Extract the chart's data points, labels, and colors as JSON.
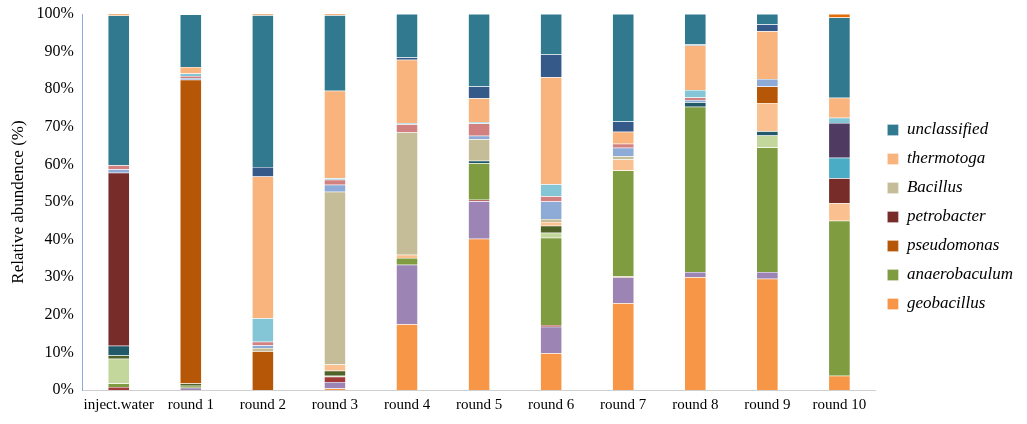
{
  "chart_data": {
    "type": "bar",
    "stacked": true,
    "ylabel": "Relative abundence (%)",
    "categories": [
      "inject.water",
      "round 1",
      "round 2",
      "round 3",
      "round 4",
      "round 5",
      "round 6",
      "round 7",
      "round 8",
      "round 9",
      "round 10"
    ],
    "ylim": [
      0,
      100
    ],
    "yticks": [
      {
        "value": 0,
        "label": "0%"
      },
      {
        "value": 10,
        "label": "10%"
      },
      {
        "value": 20,
        "label": "20%"
      },
      {
        "value": 30,
        "label": "30%"
      },
      {
        "value": 40,
        "label": "40%"
      },
      {
        "value": 50,
        "label": "50%"
      },
      {
        "value": 60,
        "label": "60%"
      },
      {
        "value": 70,
        "label": "70%"
      },
      {
        "value": 80,
        "label": "80%"
      },
      {
        "value": 90,
        "label": "90%"
      },
      {
        "value": 100,
        "label": "100%"
      }
    ],
    "grid": false,
    "legend": "right",
    "series": [
      {
        "name": "geobacillus",
        "color": "#f79646",
        "values": [
          null,
          null,
          null,
          0.4,
          17.5,
          40.2,
          9.8,
          23.1,
          30.0,
          29.6,
          3.8
        ]
      },
      {
        "color": "#9c85b5",
        "values": [
          null,
          0.6,
          null,
          1.7,
          15.8,
          10.0,
          7.0,
          6.8,
          1.4,
          1.8,
          null
        ]
      },
      {
        "color": "#a33b3b",
        "values": [
          0.8,
          null,
          null,
          1.4,
          null,
          0.4,
          0.5,
          0.3,
          null,
          null,
          null
        ]
      },
      {
        "name": "anaerobaculum",
        "color": "#7f9c41",
        "values": [
          0.9,
          0.5,
          null,
          null,
          1.8,
          9.7,
          23.2,
          28.2,
          43.9,
          33.1,
          41.2
        ]
      },
      {
        "color": "#c3d69b",
        "values": [
          6.6,
          null,
          null,
          0.3,
          null,
          null,
          1.3,
          null,
          null,
          3.2,
          null
        ]
      },
      {
        "color": "#4f6228",
        "values": [
          0.9,
          0.6,
          null,
          1.3,
          null,
          null,
          1.9,
          null,
          null,
          null,
          null
        ]
      },
      {
        "color": "#215968",
        "values": [
          2.6,
          null,
          null,
          null,
          null,
          0.7,
          null,
          null,
          1.2,
          1.1,
          null
        ]
      },
      {
        "color": "#fac090",
        "values": [
          null,
          null,
          null,
          1.7,
          0.9,
          null,
          1.0,
          2.9,
          null,
          7.5,
          4.7
        ]
      },
      {
        "name": "pseudomonas",
        "color": "#b65708",
        "values": [
          null,
          80.8,
          10.3,
          null,
          null,
          null,
          null,
          null,
          null,
          4.4,
          null
        ]
      },
      {
        "name": "petrobacter",
        "color": "#772c2a",
        "values": [
          46,
          null,
          null,
          null,
          null,
          null,
          null,
          null,
          null,
          null,
          6.6
        ]
      },
      {
        "name": "Bacillus",
        "color": "#c4bd97",
        "values": [
          null,
          null,
          0.9,
          45.9,
          32.5,
          5.7,
          0.8,
          0.9,
          null,
          null,
          null
        ]
      },
      {
        "color": "#8eaad6",
        "values": [
          0.9,
          0.5,
          0.7,
          1.9,
          null,
          0.9,
          4.6,
          2.2,
          0.6,
          2.0,
          null
        ]
      },
      {
        "color": "#d38080",
        "values": [
          1.1,
          0.5,
          0.9,
          1.3,
          2.2,
          3.3,
          1.4,
          1.1,
          0.7,
          null,
          null
        ]
      },
      {
        "color": "#4bacc6",
        "values": [
          null,
          null,
          null,
          null,
          null,
          null,
          null,
          null,
          null,
          null,
          5.5
        ]
      },
      {
        "color": "#4f3b62",
        "values": [
          null,
          null,
          null,
          null,
          null,
          null,
          null,
          null,
          null,
          null,
          9.2
        ]
      },
      {
        "color": "#84c5d6",
        "values": [
          null,
          0.7,
          6.3,
          0.4,
          0.3,
          0.4,
          3.2,
          null,
          2.0,
          null,
          1.4
        ]
      },
      {
        "name": "thermotoga",
        "color": "#f9b47e",
        "values": [
          null,
          1.7,
          37.7,
          23.3,
          16.8,
          6.3,
          28.5,
          3.2,
          11.8,
          12.7,
          5.3
        ]
      },
      {
        "color": "#355a8a",
        "values": [
          null,
          null,
          2.5,
          null,
          0.6,
          3.1,
          6.1,
          2.7,
          0.3,
          1.8,
          null
        ]
      },
      {
        "name": "unclassified",
        "color": "#31798f",
        "values": [
          39.8,
          14.0,
          40.4,
          20.1,
          11.6,
          19.3,
          10.7,
          28.6,
          8.1,
          2.8,
          21.4
        ]
      },
      {
        "color": "#e46c0a",
        "values": [
          0.4,
          null,
          0.3,
          0.3,
          null,
          null,
          null,
          null,
          null,
          null,
          0.9
        ]
      }
    ]
  }
}
